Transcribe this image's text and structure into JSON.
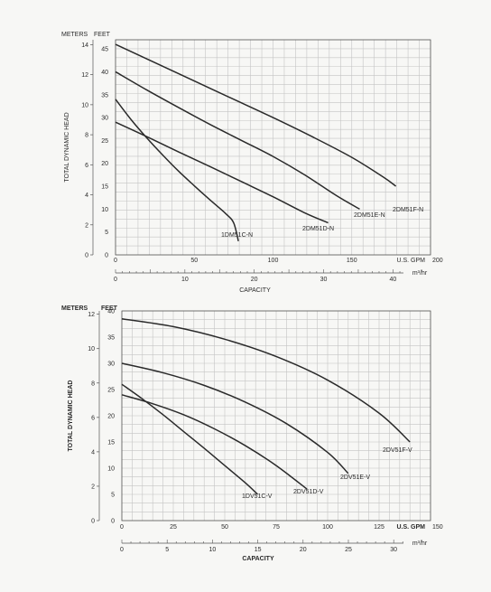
{
  "chart_data": [
    {
      "type": "line",
      "units_label_meters": "METERS",
      "units_label_feet": "FEET",
      "ylabel": "TOTAL DYNAMIC HEAD",
      "xlabel": "CAPACITY",
      "x_unit_gpm": "U.S. GPM",
      "x_unit_m3": "m³/hr",
      "grid": true,
      "xlim_gpm": [
        0,
        200
      ],
      "ylim_feet": [
        0,
        47
      ],
      "x_ticks_gpm": [
        "0",
        "50",
        "100",
        "150",
        "200"
      ],
      "x_ticks_m3": [
        "0",
        "10",
        "20",
        "30",
        "40"
      ],
      "y_ticks_feet": [
        "5",
        "10",
        "15",
        "20",
        "25",
        "30",
        "35",
        "40",
        "45"
      ],
      "y_ticks_meters": [
        "0",
        "2",
        "4",
        "6",
        "8",
        "10",
        "12",
        "14"
      ],
      "series": [
        {
          "name": "1DM51C-N",
          "color": "#2a2a2a",
          "x": [
            0,
            10,
            20,
            30,
            40,
            50,
            60,
            70,
            75,
            78
          ],
          "y": [
            34,
            29.5,
            25.5,
            21.8,
            18.3,
            15.1,
            12,
            9,
            7,
            3
          ]
        },
        {
          "name": "2DM51D-N",
          "color": "#2a2a2a",
          "x": [
            0,
            20,
            40,
            60,
            80,
            100,
            120,
            135
          ],
          "y": [
            29,
            25.8,
            22.5,
            19.3,
            16,
            12.7,
            9.2,
            7
          ]
        },
        {
          "name": "2DM51E-N",
          "color": "#2a2a2a",
          "x": [
            0,
            20,
            40,
            60,
            80,
            100,
            120,
            140,
            155
          ],
          "y": [
            40,
            36,
            32.2,
            28.5,
            25,
            21.5,
            17.5,
            13,
            10
          ]
        },
        {
          "name": "2DM51F-N",
          "color": "#2a2a2a",
          "x": [
            0,
            25,
            50,
            75,
            100,
            125,
            150,
            170,
            178
          ],
          "y": [
            46,
            42,
            38,
            34,
            30,
            25.8,
            21.3,
            17,
            15
          ]
        }
      ]
    },
    {
      "type": "line",
      "units_label_meters": "METERS",
      "units_label_feet": "FEET",
      "ylabel": "TOTAL DYNAMIC HEAD",
      "xlabel": "CAPACITY",
      "x_unit_gpm": "U.S. GPM",
      "x_unit_m3": "m³/hr",
      "grid": true,
      "xlim_gpm": [
        0,
        150
      ],
      "ylim_feet": [
        0,
        40
      ],
      "x_ticks_gpm": [
        "0",
        "25",
        "50",
        "75",
        "100",
        "125",
        "150"
      ],
      "x_ticks_m3": [
        "0",
        "5",
        "10",
        "15",
        "20",
        "25",
        "30"
      ],
      "y_ticks_feet": [
        "5",
        "10",
        "15",
        "20",
        "25",
        "30",
        "35",
        "40"
      ],
      "y_ticks_meters": [
        "0",
        "2",
        "4",
        "6",
        "8",
        "10",
        "12"
      ],
      "series": [
        {
          "name": "1DV51C-V",
          "color": "#2a2a2a",
          "x": [
            0,
            10,
            20,
            30,
            40,
            50,
            60,
            66
          ],
          "y": [
            26,
            23.2,
            20.2,
            17,
            13.8,
            10.5,
            7.2,
            5
          ]
        },
        {
          "name": "2DV51D-V",
          "color": "#2a2a2a",
          "x": [
            0,
            15,
            30,
            45,
            60,
            75,
            90
          ],
          "y": [
            24,
            22.3,
            20.2,
            17.5,
            14.3,
            10.5,
            6
          ]
        },
        {
          "name": "2DV51E-V",
          "color": "#2a2a2a",
          "x": [
            0,
            20,
            40,
            60,
            80,
            100,
            110
          ],
          "y": [
            30,
            28.2,
            25.8,
            22.6,
            18.5,
            13,
            9
          ]
        },
        {
          "name": "2DV51F-V",
          "color": "#2a2a2a",
          "x": [
            0,
            25,
            50,
            75,
            100,
            125,
            140
          ],
          "y": [
            38.5,
            37,
            34.6,
            31.3,
            26.8,
            20.5,
            15
          ]
        }
      ]
    }
  ]
}
